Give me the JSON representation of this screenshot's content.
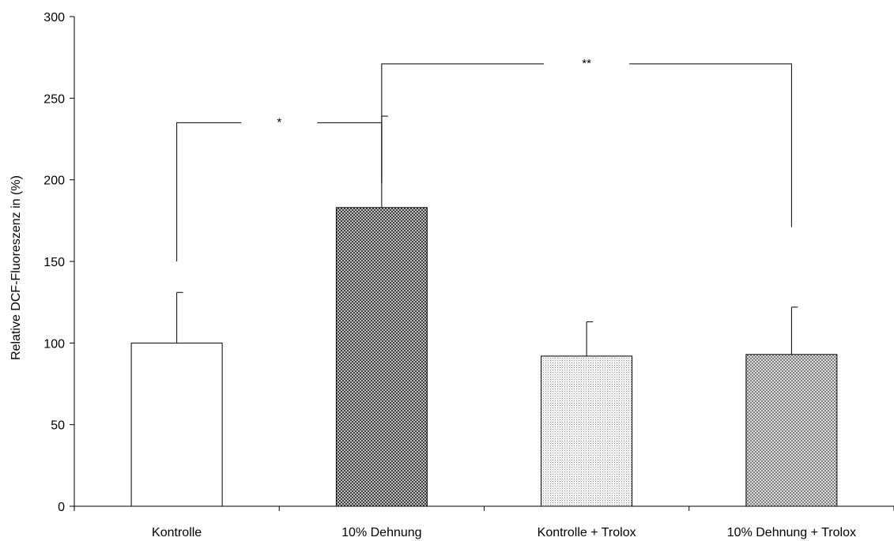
{
  "chart_data": {
    "type": "bar",
    "title": "",
    "xlabel": "",
    "ylabel": "Relative DCF-Fluoreszenz in (%)",
    "ylim": [
      0,
      300
    ],
    "yticks": [
      0,
      50,
      100,
      150,
      200,
      250,
      300
    ],
    "grid": false,
    "legend": "none",
    "categories": [
      "Kontrolle",
      "10% Dehnung",
      "Kontrolle + Trolox",
      "10% Dehnung + Trolox"
    ],
    "values": [
      100,
      183,
      92,
      93
    ],
    "error_upper": [
      31,
      56,
      21,
      29
    ],
    "fills": [
      "white",
      "dense-crosshatch",
      "light-dots",
      "medium-crosshatch"
    ],
    "significance": [
      {
        "from": 0,
        "to": 1,
        "label": "*",
        "level": 235,
        "left_end": 150,
        "right_end": 198
      },
      {
        "from": 1,
        "to": 3,
        "label": "**",
        "level": 271,
        "left_end": 198,
        "right_end": 171
      }
    ]
  }
}
